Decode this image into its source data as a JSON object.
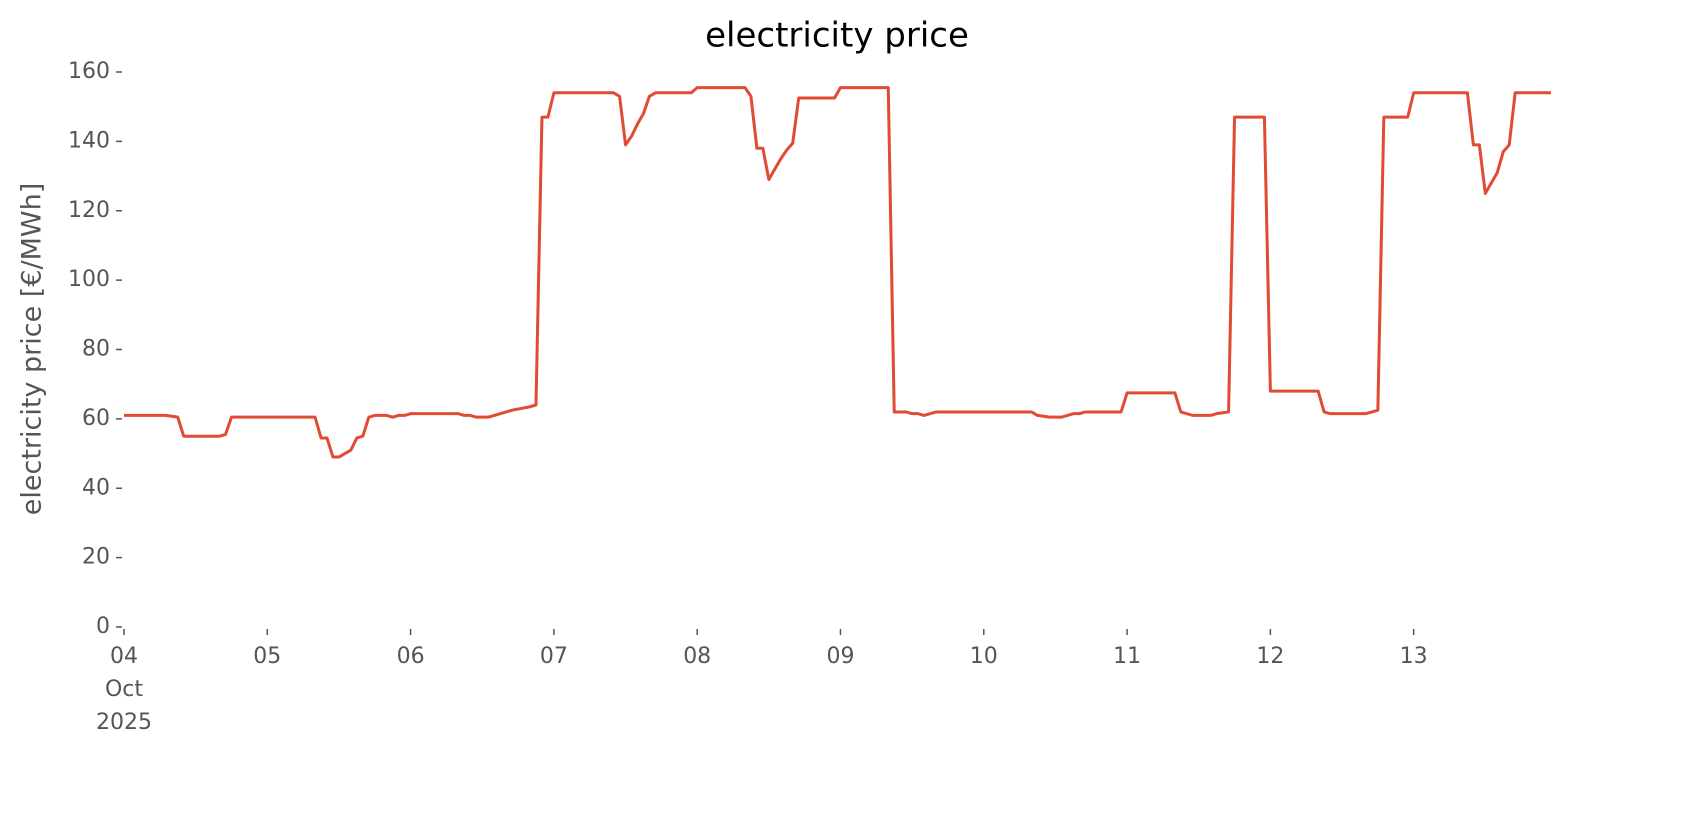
{
  "chart_data": {
    "type": "line",
    "title": "electricity price",
    "ylabel": "electricity price [€/MWh]",
    "color": "#E24A33",
    "x": [
      "2025-10-04 00:00",
      "2025-10-04 07:00",
      "2025-10-04 09:00",
      "2025-10-04 10:00",
      "2025-10-04 16:00",
      "2025-10-04 17:00",
      "2025-10-04 18:00",
      "2025-10-05 08:00",
      "2025-10-05 09:00",
      "2025-10-05 10:00",
      "2025-10-05 11:00",
      "2025-10-05 12:00",
      "2025-10-05 14:00",
      "2025-10-05 15:00",
      "2025-10-05 16:00",
      "2025-10-05 17:00",
      "2025-10-05 18:00",
      "2025-10-05 20:00",
      "2025-10-05 21:00",
      "2025-10-05 22:00",
      "2025-10-05 23:00",
      "2025-10-06 00:00",
      "2025-10-06 08:00",
      "2025-10-06 09:00",
      "2025-10-06 10:00",
      "2025-10-06 11:00",
      "2025-10-06 13:00",
      "2025-10-06 16:00",
      "2025-10-06 17:00",
      "2025-10-06 20:00",
      "2025-10-06 21:00",
      "2025-10-06 22:00",
      "2025-10-06 23:00",
      "2025-10-07 00:00",
      "2025-10-07 10:00",
      "2025-10-07 11:00",
      "2025-10-07 12:00",
      "2025-10-07 13:00",
      "2025-10-07 14:00",
      "2025-10-07 15:00",
      "2025-10-07 16:00",
      "2025-10-07 17:00",
      "2025-10-07 23:00",
      "2025-10-08 00:00",
      "2025-10-08 08:00",
      "2025-10-08 09:00",
      "2025-10-08 10:00",
      "2025-10-08 11:00",
      "2025-10-08 12:00",
      "2025-10-08 13:00",
      "2025-10-08 14:00",
      "2025-10-08 15:00",
      "2025-10-08 16:00",
      "2025-10-08 17:00",
      "2025-10-08 23:00",
      "2025-10-09 00:00",
      "2025-10-09 08:00",
      "2025-10-09 09:00",
      "2025-10-09 11:00",
      "2025-10-09 12:00",
      "2025-10-09 13:00",
      "2025-10-09 14:00",
      "2025-10-09 15:00",
      "2025-10-09 16:00",
      "2025-10-10 08:00",
      "2025-10-10 09:00",
      "2025-10-10 11:00",
      "2025-10-10 13:00",
      "2025-10-10 14:00",
      "2025-10-10 15:00",
      "2025-10-10 16:00",
      "2025-10-10 17:00",
      "2025-10-10 23:00",
      "2025-10-11 00:00",
      "2025-10-11 08:00",
      "2025-10-11 09:00",
      "2025-10-11 10:00",
      "2025-10-11 11:00",
      "2025-10-11 14:00",
      "2025-10-11 15:00",
      "2025-10-11 17:00",
      "2025-10-11 18:00",
      "2025-10-11 23:00",
      "2025-10-12 00:00",
      "2025-10-12 08:00",
      "2025-10-12 09:00",
      "2025-10-12 10:00",
      "2025-10-12 11:00",
      "2025-10-12 16:00",
      "2025-10-12 17:00",
      "2025-10-12 18:00",
      "2025-10-12 19:00",
      "2025-10-12 23:00",
      "2025-10-13 00:00",
      "2025-10-13 09:00",
      "2025-10-13 10:00",
      "2025-10-13 11:00",
      "2025-10-13 12:00",
      "2025-10-13 13:00",
      "2025-10-13 14:00",
      "2025-10-13 15:00",
      "2025-10-13 16:00",
      "2025-10-13 17:00",
      "2025-10-13 23:00"
    ],
    "values": [
      61,
      61,
      60.5,
      55,
      55,
      55.5,
      60.5,
      60.5,
      54.5,
      54.5,
      49,
      49,
      51,
      54.5,
      55,
      60.5,
      61,
      61,
      60.5,
      61,
      61,
      61.5,
      61.5,
      61,
      61,
      60.5,
      60.5,
      62,
      62.5,
      63.5,
      64,
      147,
      147,
      154,
      154,
      153,
      139,
      141.5,
      145,
      148,
      153,
      154,
      154,
      155.5,
      155.5,
      153,
      138,
      138,
      129,
      132,
      135,
      137.5,
      139.5,
      152.5,
      152.5,
      155.5,
      155.5,
      62,
      62,
      61.5,
      61.5,
      61,
      61.5,
      62,
      62,
      61,
      60.5,
      60.5,
      61,
      61.5,
      61.5,
      62,
      62,
      67.5,
      67.5,
      62,
      61.5,
      61,
      61,
      61.5,
      62,
      147,
      147,
      68,
      68,
      62,
      61.5,
      61.5,
      61.5,
      62,
      62.5,
      147,
      147,
      154,
      154,
      139,
      139,
      125,
      128,
      131,
      137,
      139,
      154,
      154
    ],
    "xlim": [
      "2025-10-04 00:00",
      "2025-10-13 23:00"
    ],
    "xticks": [
      {
        "value": "2025-10-04 00:00",
        "label": "04\nOct\n2025"
      },
      {
        "value": "2025-10-05 00:00",
        "label": "05"
      },
      {
        "value": "2025-10-06 00:00",
        "label": "06"
      },
      {
        "value": "2025-10-07 00:00",
        "label": "07"
      },
      {
        "value": "2025-10-08 00:00",
        "label": "08"
      },
      {
        "value": "2025-10-09 00:00",
        "label": "09"
      },
      {
        "value": "2025-10-10 00:00",
        "label": "10"
      },
      {
        "value": "2025-10-11 00:00",
        "label": "11"
      },
      {
        "value": "2025-10-12 00:00",
        "label": "12"
      },
      {
        "value": "2025-10-13 00:00",
        "label": "13"
      }
    ],
    "ylim": [
      0,
      160
    ],
    "yticks": [
      0,
      20,
      40,
      60,
      80,
      100,
      120,
      140,
      160
    ],
    "grid": false
  }
}
